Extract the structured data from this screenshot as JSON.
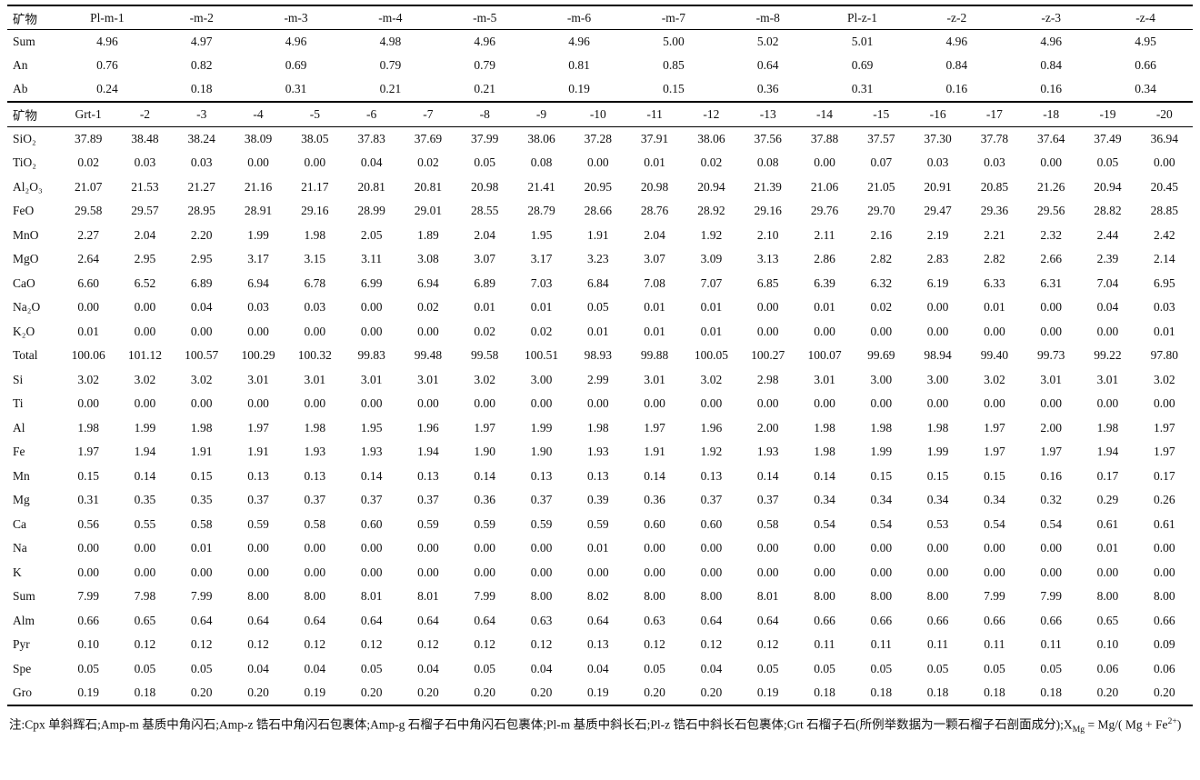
{
  "page": {
    "background": "#ffffff",
    "text_color": "#111111",
    "rule_color": "#000000"
  },
  "table1": {
    "corner_label": "矿物",
    "columns": [
      "Pl-m-1",
      "-m-2",
      "-m-3",
      "-m-4",
      "-m-5",
      "-m-6",
      "-m-7",
      "-m-8",
      "Pl-z-1",
      "-z-2",
      "-z-3",
      "-z-4"
    ],
    "rows": [
      {
        "label": "Sum",
        "values": [
          "4.96",
          "4.97",
          "4.96",
          "4.98",
          "4.96",
          "4.96",
          "5.00",
          "5.02",
          "5.01",
          "4.96",
          "4.96",
          "4.95"
        ]
      },
      {
        "label": "An",
        "values": [
          "0.76",
          "0.82",
          "0.69",
          "0.79",
          "0.79",
          "0.81",
          "0.85",
          "0.64",
          "0.69",
          "0.84",
          "0.84",
          "0.66"
        ]
      },
      {
        "label": "Ab",
        "values": [
          "0.24",
          "0.18",
          "0.31",
          "0.21",
          "0.21",
          "0.19",
          "0.15",
          "0.36",
          "0.31",
          "0.16",
          "0.16",
          "0.34"
        ]
      }
    ]
  },
  "table2": {
    "corner_label": "矿物",
    "columns": [
      "Grt-1",
      "-2",
      "-3",
      "-4",
      "-5",
      "-6",
      "-7",
      "-8",
      "-9",
      "-10",
      "-11",
      "-12",
      "-13",
      "-14",
      "-15",
      "-16",
      "-17",
      "-18",
      "-19",
      "-20"
    ],
    "rows": [
      {
        "label": "SiO₂",
        "values": [
          "37.89",
          "38.48",
          "38.24",
          "38.09",
          "38.05",
          "37.83",
          "37.69",
          "37.99",
          "38.06",
          "37.28",
          "37.91",
          "38.06",
          "37.56",
          "37.88",
          "37.57",
          "37.30",
          "37.78",
          "37.64",
          "37.49",
          "36.94"
        ]
      },
      {
        "label": "TiO₂",
        "values": [
          "0.02",
          "0.03",
          "0.03",
          "0.00",
          "0.00",
          "0.04",
          "0.02",
          "0.05",
          "0.08",
          "0.00",
          "0.01",
          "0.02",
          "0.08",
          "0.00",
          "0.07",
          "0.03",
          "0.03",
          "0.00",
          "0.05",
          "0.00"
        ]
      },
      {
        "label": "Al₂O₃",
        "values": [
          "21.07",
          "21.53",
          "21.27",
          "21.16",
          "21.17",
          "20.81",
          "20.81",
          "20.98",
          "21.41",
          "20.95",
          "20.98",
          "20.94",
          "21.39",
          "21.06",
          "21.05",
          "20.91",
          "20.85",
          "21.26",
          "20.94",
          "20.45"
        ]
      },
      {
        "label": "FeO",
        "values": [
          "29.58",
          "29.57",
          "28.95",
          "28.91",
          "29.16",
          "28.99",
          "29.01",
          "28.55",
          "28.79",
          "28.66",
          "28.76",
          "28.92",
          "29.16",
          "29.76",
          "29.70",
          "29.47",
          "29.36",
          "29.56",
          "28.82",
          "28.85"
        ]
      },
      {
        "label": "MnO",
        "values": [
          "2.27",
          "2.04",
          "2.20",
          "1.99",
          "1.98",
          "2.05",
          "1.89",
          "2.04",
          "1.95",
          "1.91",
          "2.04",
          "1.92",
          "2.10",
          "2.11",
          "2.16",
          "2.19",
          "2.21",
          "2.32",
          "2.44",
          "2.42"
        ]
      },
      {
        "label": "MgO",
        "values": [
          "2.64",
          "2.95",
          "2.95",
          "3.17",
          "3.15",
          "3.11",
          "3.08",
          "3.07",
          "3.17",
          "3.23",
          "3.07",
          "3.09",
          "3.13",
          "2.86",
          "2.82",
          "2.83",
          "2.82",
          "2.66",
          "2.39",
          "2.14"
        ]
      },
      {
        "label": "CaO",
        "values": [
          "6.60",
          "6.52",
          "6.89",
          "6.94",
          "6.78",
          "6.99",
          "6.94",
          "6.89",
          "7.03",
          "6.84",
          "7.08",
          "7.07",
          "6.85",
          "6.39",
          "6.32",
          "6.19",
          "6.33",
          "6.31",
          "7.04",
          "6.95"
        ]
      },
      {
        "label": "Na₂O",
        "values": [
          "0.00",
          "0.00",
          "0.04",
          "0.03",
          "0.03",
          "0.00",
          "0.02",
          "0.01",
          "0.01",
          "0.05",
          "0.01",
          "0.01",
          "0.00",
          "0.01",
          "0.02",
          "0.00",
          "0.01",
          "0.00",
          "0.04",
          "0.03"
        ]
      },
      {
        "label": "K₂O",
        "values": [
          "0.01",
          "0.00",
          "0.00",
          "0.00",
          "0.00",
          "0.00",
          "0.00",
          "0.02",
          "0.02",
          "0.01",
          "0.01",
          "0.01",
          "0.00",
          "0.00",
          "0.00",
          "0.00",
          "0.00",
          "0.00",
          "0.00",
          "0.01"
        ]
      },
      {
        "label": "Total",
        "values": [
          "100.06",
          "101.12",
          "100.57",
          "100.29",
          "100.32",
          "99.83",
          "99.48",
          "99.58",
          "100.51",
          "98.93",
          "99.88",
          "100.05",
          "100.27",
          "100.07",
          "99.69",
          "98.94",
          "99.40",
          "99.73",
          "99.22",
          "97.80"
        ]
      },
      {
        "label": "Si",
        "values": [
          "3.02",
          "3.02",
          "3.02",
          "3.01",
          "3.01",
          "3.01",
          "3.01",
          "3.02",
          "3.00",
          "2.99",
          "3.01",
          "3.02",
          "2.98",
          "3.01",
          "3.00",
          "3.00",
          "3.02",
          "3.01",
          "3.01",
          "3.02"
        ]
      },
      {
        "label": "Ti",
        "values": [
          "0.00",
          "0.00",
          "0.00",
          "0.00",
          "0.00",
          "0.00",
          "0.00",
          "0.00",
          "0.00",
          "0.00",
          "0.00",
          "0.00",
          "0.00",
          "0.00",
          "0.00",
          "0.00",
          "0.00",
          "0.00",
          "0.00",
          "0.00"
        ]
      },
      {
        "label": "Al",
        "values": [
          "1.98",
          "1.99",
          "1.98",
          "1.97",
          "1.98",
          "1.95",
          "1.96",
          "1.97",
          "1.99",
          "1.98",
          "1.97",
          "1.96",
          "2.00",
          "1.98",
          "1.98",
          "1.98",
          "1.97",
          "2.00",
          "1.98",
          "1.97"
        ]
      },
      {
        "label": "Fe",
        "values": [
          "1.97",
          "1.94",
          "1.91",
          "1.91",
          "1.93",
          "1.93",
          "1.94",
          "1.90",
          "1.90",
          "1.93",
          "1.91",
          "1.92",
          "1.93",
          "1.98",
          "1.99",
          "1.99",
          "1.97",
          "1.97",
          "1.94",
          "1.97"
        ]
      },
      {
        "label": "Mn",
        "values": [
          "0.15",
          "0.14",
          "0.15",
          "0.13",
          "0.13",
          "0.14",
          "0.13",
          "0.14",
          "0.13",
          "0.13",
          "0.14",
          "0.13",
          "0.14",
          "0.14",
          "0.15",
          "0.15",
          "0.15",
          "0.16",
          "0.17",
          "0.17"
        ]
      },
      {
        "label": "Mg",
        "values": [
          "0.31",
          "0.35",
          "0.35",
          "0.37",
          "0.37",
          "0.37",
          "0.37",
          "0.36",
          "0.37",
          "0.39",
          "0.36",
          "0.37",
          "0.37",
          "0.34",
          "0.34",
          "0.34",
          "0.34",
          "0.32",
          "0.29",
          "0.26"
        ]
      },
      {
        "label": "Ca",
        "values": [
          "0.56",
          "0.55",
          "0.58",
          "0.59",
          "0.58",
          "0.60",
          "0.59",
          "0.59",
          "0.59",
          "0.59",
          "0.60",
          "0.60",
          "0.58",
          "0.54",
          "0.54",
          "0.53",
          "0.54",
          "0.54",
          "0.61",
          "0.61"
        ]
      },
      {
        "label": "Na",
        "values": [
          "0.00",
          "0.00",
          "0.01",
          "0.00",
          "0.00",
          "0.00",
          "0.00",
          "0.00",
          "0.00",
          "0.01",
          "0.00",
          "0.00",
          "0.00",
          "0.00",
          "0.00",
          "0.00",
          "0.00",
          "0.00",
          "0.01",
          "0.00"
        ]
      },
      {
        "label": "K",
        "values": [
          "0.00",
          "0.00",
          "0.00",
          "0.00",
          "0.00",
          "0.00",
          "0.00",
          "0.00",
          "0.00",
          "0.00",
          "0.00",
          "0.00",
          "0.00",
          "0.00",
          "0.00",
          "0.00",
          "0.00",
          "0.00",
          "0.00",
          "0.00"
        ]
      },
      {
        "label": "Sum",
        "values": [
          "7.99",
          "7.98",
          "7.99",
          "8.00",
          "8.00",
          "8.01",
          "8.01",
          "7.99",
          "8.00",
          "8.02",
          "8.00",
          "8.00",
          "8.01",
          "8.00",
          "8.00",
          "8.00",
          "7.99",
          "7.99",
          "8.00",
          "8.00"
        ]
      },
      {
        "label": "Alm",
        "values": [
          "0.66",
          "0.65",
          "0.64",
          "0.64",
          "0.64",
          "0.64",
          "0.64",
          "0.64",
          "0.63",
          "0.64",
          "0.63",
          "0.64",
          "0.64",
          "0.66",
          "0.66",
          "0.66",
          "0.66",
          "0.66",
          "0.65",
          "0.66"
        ]
      },
      {
        "label": "Pyr",
        "values": [
          "0.10",
          "0.12",
          "0.12",
          "0.12",
          "0.12",
          "0.12",
          "0.12",
          "0.12",
          "0.12",
          "0.13",
          "0.12",
          "0.12",
          "0.12",
          "0.11",
          "0.11",
          "0.11",
          "0.11",
          "0.11",
          "0.10",
          "0.09"
        ]
      },
      {
        "label": "Spe",
        "values": [
          "0.05",
          "0.05",
          "0.05",
          "0.04",
          "0.04",
          "0.05",
          "0.04",
          "0.05",
          "0.04",
          "0.04",
          "0.05",
          "0.04",
          "0.05",
          "0.05",
          "0.05",
          "0.05",
          "0.05",
          "0.05",
          "0.06",
          "0.06"
        ]
      },
      {
        "label": "Gro",
        "values": [
          "0.19",
          "0.18",
          "0.20",
          "0.20",
          "0.19",
          "0.20",
          "0.20",
          "0.20",
          "0.20",
          "0.19",
          "0.20",
          "0.20",
          "0.19",
          "0.18",
          "0.18",
          "0.18",
          "0.18",
          "0.18",
          "0.20",
          "0.20"
        ]
      }
    ]
  },
  "note": {
    "segments": [
      {
        "t": "注:Cpx 单斜辉石;Amp-m 基质中角闪石;Amp-z 锆石中角闪石包裹体;Amp-g 石榴子石中角闪石包裹体;Pl-m 基质中斜长石;Pl-z 锆石中斜长石包裹体;Grt 石榴子石(所例举数据为一颗石榴子石剖面成分);X",
        "s": "n"
      },
      {
        "t": "Mg",
        "s": "sub"
      },
      {
        "t": " = Mg/( Mg + Fe",
        "s": "n"
      },
      {
        "t": "2+",
        "s": "sup"
      },
      {
        "t": ")",
        "s": "n"
      }
    ]
  }
}
